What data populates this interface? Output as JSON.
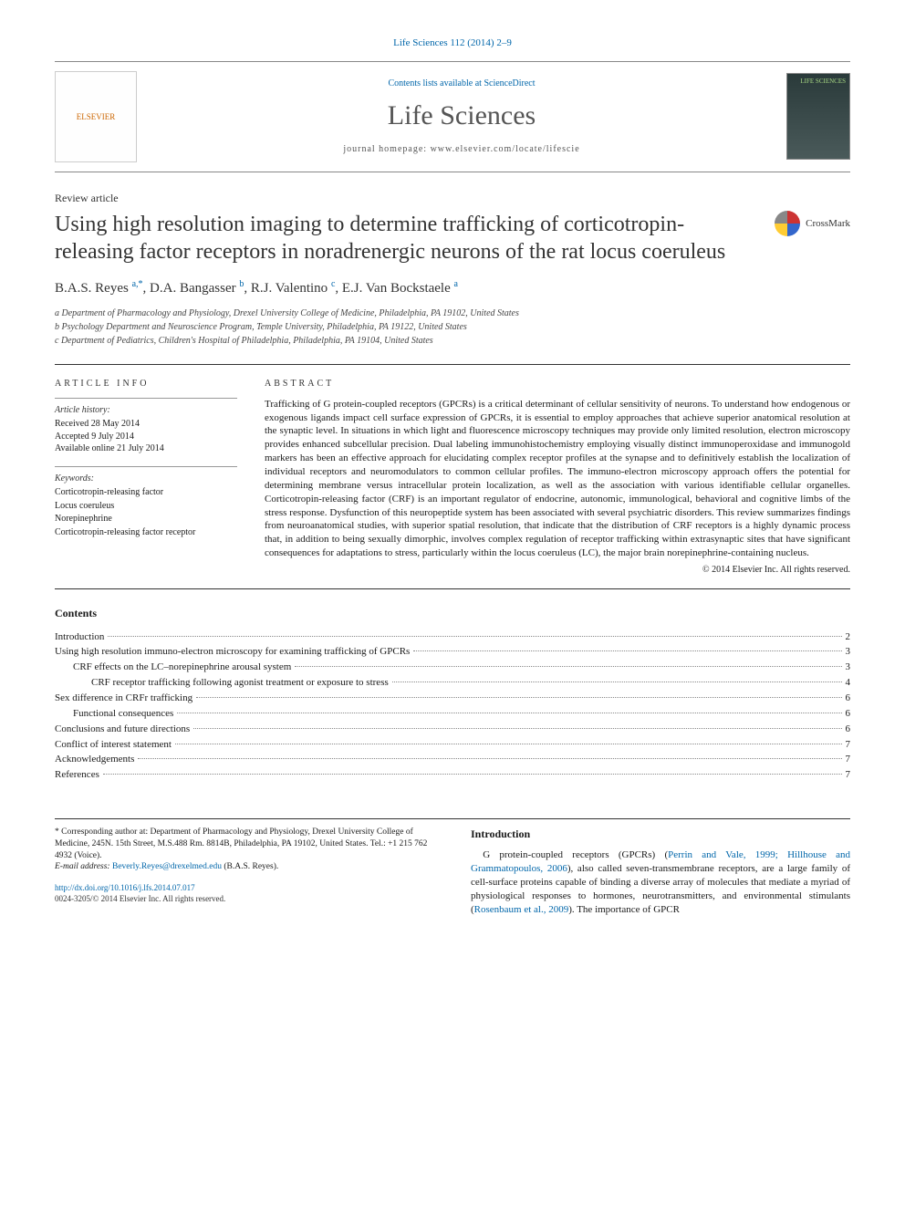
{
  "journal_ref": "Life Sciences 112 (2014) 2–9",
  "header": {
    "contents_prefix": "Contents lists available at ",
    "contents_link": "ScienceDirect",
    "journal_name": "Life Sciences",
    "homepage_prefix": "journal homepage: ",
    "homepage_url": "www.elsevier.com/locate/lifescie",
    "elsevier_label": "ELSEVIER",
    "cover_label": "LIFE SCIENCES"
  },
  "article_type": "Review article",
  "title": "Using high resolution imaging to determine trafficking of corticotropin-releasing factor receptors in noradrenergic neurons of the rat locus coeruleus",
  "crossmark": "CrossMark",
  "authors_html": "B.A.S. Reyes <sup>a,*</sup>, D.A. Bangasser <sup>b</sup>, R.J. Valentino <sup>c</sup>, E.J. Van Bockstaele <sup>a</sup>",
  "affiliations": [
    "a  Department of Pharmacology and Physiology, Drexel University College of Medicine, Philadelphia, PA 19102, United States",
    "b  Psychology Department and Neuroscience Program, Temple University, Philadelphia, PA 19122, United States",
    "c  Department of Pediatrics, Children's Hospital of Philadelphia, Philadelphia, PA 19104, United States"
  ],
  "info": {
    "heading": "article info",
    "history_label": "Article history:",
    "history": [
      "Received 28 May 2014",
      "Accepted 9 July 2014",
      "Available online 21 July 2014"
    ],
    "keywords_label": "Keywords:",
    "keywords": [
      "Corticotropin-releasing factor",
      "Locus coeruleus",
      "Norepinephrine",
      "Corticotropin-releasing factor receptor"
    ]
  },
  "abstract": {
    "heading": "abstract",
    "text": "Trafficking of G protein-coupled receptors (GPCRs) is a critical determinant of cellular sensitivity of neurons. To understand how endogenous or exogenous ligands impact cell surface expression of GPCRs, it is essential to employ approaches that achieve superior anatomical resolution at the synaptic level. In situations in which light and fluorescence microscopy techniques may provide only limited resolution, electron microscopy provides enhanced subcellular precision. Dual labeling immunohistochemistry employing visually distinct immunoperoxidase and immunogold markers has been an effective approach for elucidating complex receptor profiles at the synapse and to definitively establish the localization of individual receptors and neuromodulators to common cellular profiles. The immuno-electron microscopy approach offers the potential for determining membrane versus intracellular protein localization, as well as the association with various identifiable cellular organelles. Corticotropin-releasing factor (CRF) is an important regulator of endocrine, autonomic, immunological, behavioral and cognitive limbs of the stress response. Dysfunction of this neuropeptide system has been associated with several psychiatric disorders. This review summarizes findings from neuroanatomical studies, with superior spatial resolution, that indicate that the distribution of CRF receptors is a highly dynamic process that, in addition to being sexually dimorphic, involves complex regulation of receptor trafficking within extrasynaptic sites that have significant consequences for adaptations to stress, particularly within the locus coeruleus (LC), the major brain norepinephrine-containing nucleus.",
    "copyright": "© 2014 Elsevier Inc. All rights reserved."
  },
  "contents_heading": "Contents",
  "toc": [
    {
      "label": "Introduction",
      "page": "2",
      "indent": 0
    },
    {
      "label": "Using high resolution immuno-electron microscopy for examining trafficking of GPCRs",
      "page": "3",
      "indent": 0
    },
    {
      "label": "CRF effects on the LC–norepinephrine arousal system",
      "page": "3",
      "indent": 1
    },
    {
      "label": "CRF receptor trafficking following agonist treatment or exposure to stress",
      "page": "4",
      "indent": 2
    },
    {
      "label": "Sex difference in CRFr trafficking",
      "page": "6",
      "indent": 0
    },
    {
      "label": "Functional consequences",
      "page": "6",
      "indent": 1
    },
    {
      "label": "Conclusions and future directions",
      "page": "6",
      "indent": 0
    },
    {
      "label": "Conflict of interest statement",
      "page": "7",
      "indent": 0
    },
    {
      "label": "Acknowledgements",
      "page": "7",
      "indent": 0
    },
    {
      "label": "References",
      "page": "7",
      "indent": 0
    }
  ],
  "intro": {
    "heading": "Introduction",
    "text_pre": "G protein-coupled receptors (GPCRs) (",
    "cite1": "Perrin and Vale, 1999; Hillhouse and Grammatopoulos, 2006",
    "text_mid": "), also called seven-transmembrane receptors, are a large family of cell-surface proteins capable of binding a diverse array of molecules that mediate a myriad of physiological responses to hormones, neurotransmitters, and environmental stimulants (",
    "cite2": "Rosenbaum et al., 2009",
    "text_post": "). The importance of GPCR"
  },
  "footer": {
    "corr_label": "* Corresponding author at: Department of Pharmacology and Physiology, Drexel University College of Medicine, 245N. 15th Street, M.S.488 Rm. 8814B, Philadelphia, PA 19102, United States. Tel.: +1 215 762 4932 (Voice).",
    "email_label": "E-mail address: ",
    "email": "Beverly.Reyes@drexelmed.edu",
    "email_suffix": " (B.A.S. Reyes).",
    "doi": "http://dx.doi.org/10.1016/j.lfs.2014.07.017",
    "copyright": "0024-3205/© 2014 Elsevier Inc. All rights reserved."
  },
  "colors": {
    "link": "#0066aa",
    "text": "#1a1a1a",
    "rule": "#333333",
    "muted": "#555555"
  }
}
